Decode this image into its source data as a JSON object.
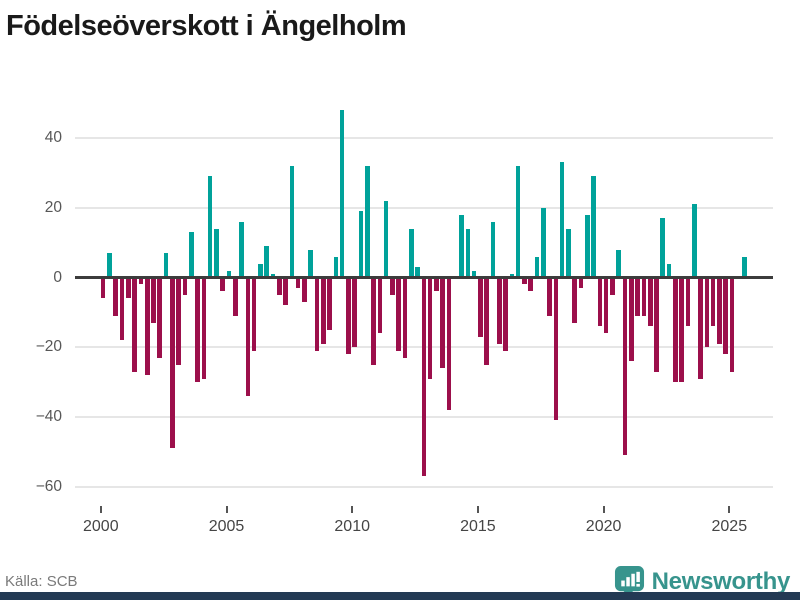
{
  "title": "Födelseöverskott i Ängelholm",
  "source": "Källa: SCB",
  "logo": {
    "text": "Newsworthy",
    "icon": "newsworthy-speech-bubble-chart-icon"
  },
  "colors": {
    "positive": "#00a29a",
    "negative": "#9c0f4b",
    "logo_teal": "#37948d",
    "footer_bar": "#233a54",
    "zero_line": "#3c3c3c",
    "gridline": "#e6e6e6",
    "axis_text": "#575757",
    "title_text": "#1a1a1a"
  },
  "chart_data": {
    "type": "bar",
    "title": "Födelseöverskott i Ängelholm",
    "xlabel": "",
    "ylabel": "",
    "x_unit": "quarter",
    "start": {
      "year": 2000,
      "quarter": 1
    },
    "values": [
      -6,
      7,
      -11,
      -18,
      -6,
      -27,
      -2,
      -28,
      -13,
      -23,
      7,
      -49,
      -25,
      -5,
      13,
      -30,
      -29,
      29,
      14,
      -4,
      2,
      -11,
      16,
      -34,
      -21,
      4,
      9,
      1,
      -5,
      -8,
      32,
      -3,
      -7,
      8,
      -21,
      -19,
      -15,
      6,
      48,
      -22,
      -20,
      19,
      32,
      -25,
      -16,
      22,
      -5,
      -21,
      -23,
      14,
      3,
      -57,
      -29,
      -4,
      -26,
      -38,
      0,
      18,
      14,
      2,
      -17,
      -25,
      16,
      -19,
      -21,
      1,
      32,
      -2,
      -4,
      6,
      20,
      -11,
      -41,
      33,
      14,
      -13,
      -3,
      18,
      29,
      -14,
      -16,
      -5,
      8,
      -51,
      -24,
      -11,
      -11,
      -14,
      -27,
      17,
      4,
      -30,
      -30,
      -14,
      21,
      -29,
      -20,
      -14,
      -19,
      -22,
      -27,
      0,
      6
    ],
    "y_ticks": [
      40,
      20,
      0,
      -20,
      -40,
      -60
    ],
    "y_tick_labels": [
      "40",
      "20",
      "0",
      "−20",
      "−40",
      "−60"
    ],
    "x_tick_labels": [
      "2000",
      "2005",
      "2010",
      "2015",
      "2020",
      "2025"
    ],
    "ylim": [
      -62,
      52
    ],
    "grid": "horizontal",
    "legend": "none"
  }
}
